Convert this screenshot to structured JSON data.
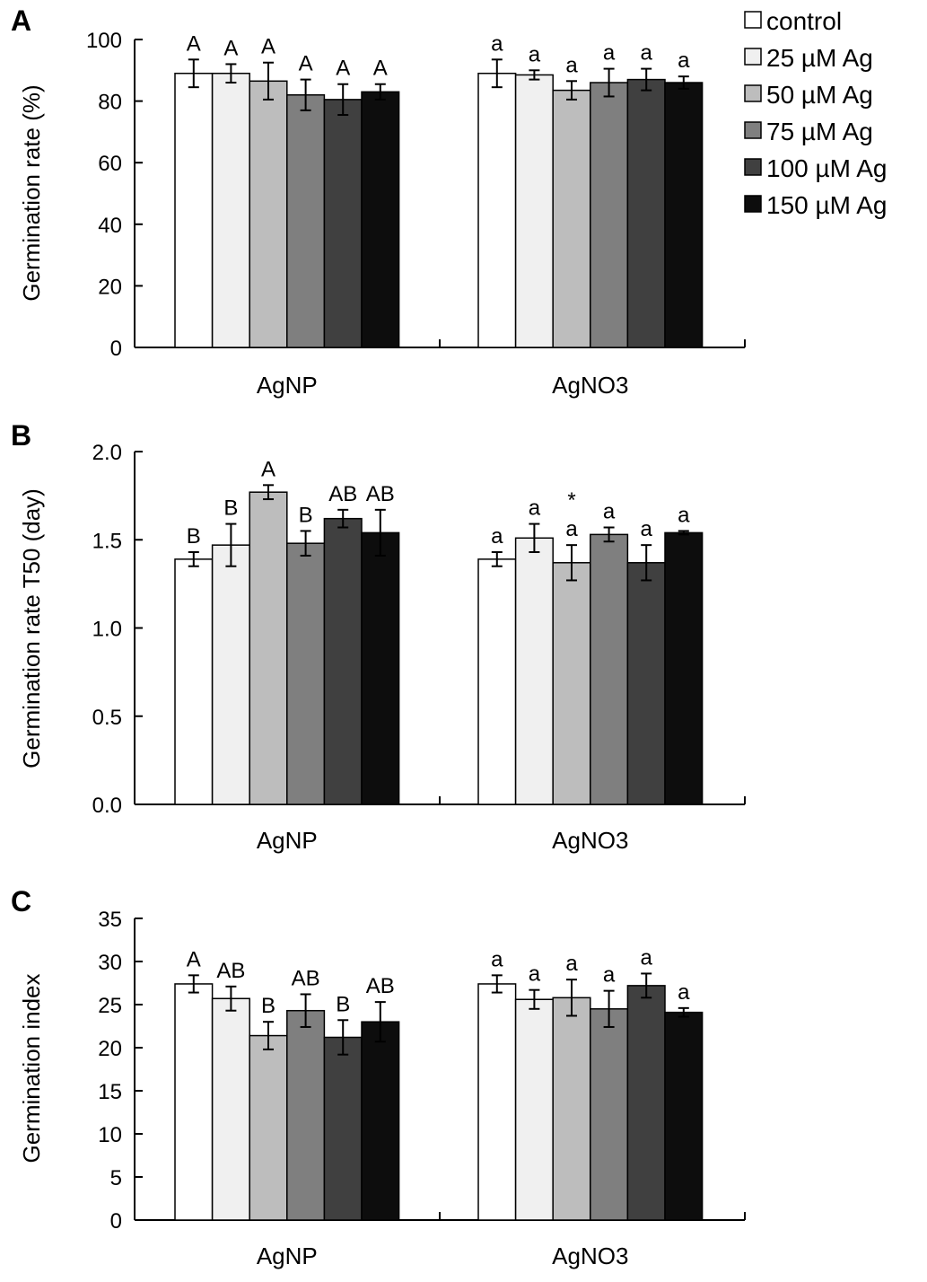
{
  "chart_data": {
    "type": "bar",
    "groups": [
      "AgNP",
      "AgNO3"
    ],
    "legend": {
      "position": "top-right",
      "entries": [
        {
          "label": "control",
          "color": "#ffffff"
        },
        {
          "label": "25 µM Ag",
          "color": "#f0f0f0"
        },
        {
          "label": "50 µM Ag",
          "color": "#bdbdbd"
        },
        {
          "label": "75 µM Ag",
          "color": "#7f7f7f"
        },
        {
          "label": "100 µM Ag",
          "color": "#404040"
        },
        {
          "label": "150 µM Ag",
          "color": "#0d0d0d"
        }
      ]
    },
    "panels": [
      {
        "letter": "A",
        "ylabel": "Germination rate (%)",
        "ylim": [
          0,
          100
        ],
        "yticks": [
          "0",
          "20",
          "40",
          "60",
          "80",
          "100"
        ],
        "ytick_values": [
          0,
          20,
          40,
          60,
          80,
          100
        ],
        "series": [
          {
            "group": "AgNP",
            "values": [
              89,
              89,
              86.5,
              82,
              80.5,
              83
            ],
            "errors": [
              4.5,
              3,
              6,
              5,
              5,
              2.5
            ],
            "labels": [
              "A",
              "A",
              "A",
              "A",
              "A",
              "A"
            ]
          },
          {
            "group": "AgNO3",
            "values": [
              89,
              88.5,
              83.5,
              86,
              87,
              86
            ],
            "errors": [
              4.5,
              1.5,
              3,
              4.5,
              3.5,
              2
            ],
            "labels": [
              "a",
              "a",
              "a",
              "a",
              "a",
              "a"
            ]
          }
        ]
      },
      {
        "letter": "B",
        "ylabel": "Germination rate T50 (day)",
        "ylim": [
          0,
          2.0
        ],
        "yticks": [
          "0.0",
          "0.5",
          "1.0",
          "1.5",
          "2.0"
        ],
        "ytick_values": [
          0,
          0.5,
          1.0,
          1.5,
          2.0
        ],
        "series": [
          {
            "group": "AgNP",
            "values": [
              1.39,
              1.47,
              1.77,
              1.48,
              1.62,
              1.54
            ],
            "errors": [
              0.04,
              0.12,
              0.04,
              0.07,
              0.05,
              0.13
            ],
            "labels": [
              "B",
              "B",
              "A",
              "B",
              "AB",
              "AB"
            ]
          },
          {
            "group": "AgNO3",
            "values": [
              1.39,
              1.51,
              1.37,
              1.53,
              1.37,
              1.54
            ],
            "errors": [
              0.04,
              0.08,
              0.1,
              0.04,
              0.1,
              0.01
            ],
            "labels": [
              "a",
              "a",
              "a",
              "a",
              "a",
              "a"
            ],
            "annotations": [
              "",
              "",
              "*",
              "",
              "",
              ""
            ]
          }
        ]
      },
      {
        "letter": "C",
        "ylabel": "Germination index",
        "ylim": [
          0,
          35
        ],
        "yticks": [
          "0",
          "5",
          "10",
          "15",
          "20",
          "25",
          "30",
          "35"
        ],
        "ytick_values": [
          0,
          5,
          10,
          15,
          20,
          25,
          30,
          35
        ],
        "series": [
          {
            "group": "AgNP",
            "values": [
              27.4,
              25.7,
              21.4,
              24.3,
              21.2,
              23.0
            ],
            "errors": [
              1.0,
              1.4,
              1.6,
              1.9,
              2.0,
              2.3
            ],
            "labels": [
              "A",
              "AB",
              "B",
              "AB",
              "B",
              "AB"
            ]
          },
          {
            "group": "AgNO3",
            "values": [
              27.4,
              25.6,
              25.8,
              24.5,
              27.2,
              24.1
            ],
            "errors": [
              1.0,
              1.1,
              2.1,
              2.1,
              1.4,
              0.5
            ],
            "labels": [
              "a",
              "a",
              "a",
              "a",
              "a",
              "a"
            ]
          }
        ]
      }
    ]
  }
}
